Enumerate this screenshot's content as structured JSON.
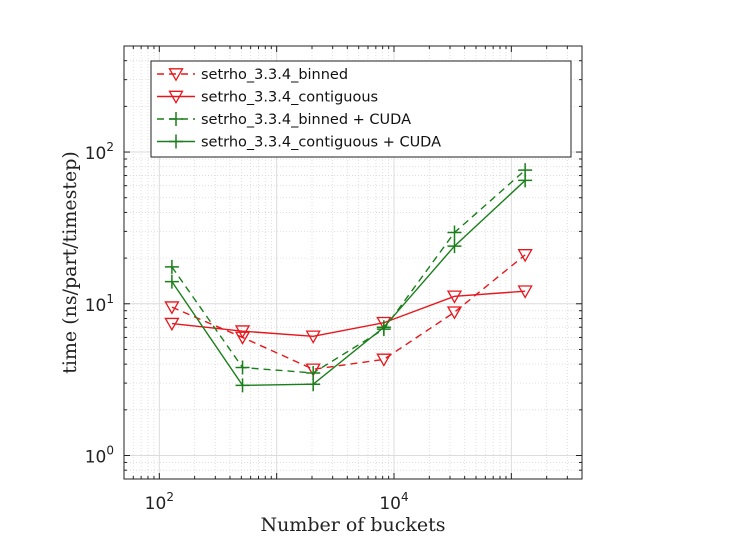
{
  "chart_data": {
    "type": "line",
    "title": "",
    "xlabel": "Number of buckets",
    "ylabel": "time (ns/part/timestep)",
    "xscale": "log",
    "yscale": "log",
    "xlim": [
      50,
      400000
    ],
    "ylim": [
      0.7,
      500
    ],
    "grid": true,
    "legend_position": "top-left",
    "x_ticks": [
      {
        "base": "10",
        "exp": "2",
        "value": 100
      },
      {
        "base": "10",
        "exp": "4",
        "value": 10000
      }
    ],
    "y_ticks": [
      {
        "base": "10",
        "exp": "0",
        "value": 1
      },
      {
        "base": "10",
        "exp": "1",
        "value": 10
      },
      {
        "base": "10",
        "exp": "2",
        "value": 100
      }
    ],
    "x": [
      128,
      512,
      2048,
      8192,
      32768,
      131072
    ],
    "series": [
      {
        "name": "setrho_3.3.4_binned",
        "color": "#e8161b",
        "dash": "dashed",
        "marker": "triangle-down",
        "values": [
          9.5,
          6.0,
          3.7,
          4.3,
          8.8,
          21.0
        ]
      },
      {
        "name": "setrho_3.3.4_contiguous",
        "color": "#e8161b",
        "dash": "solid",
        "marker": "triangle-down",
        "values": [
          7.4,
          6.6,
          6.1,
          7.5,
          11.2,
          12.1
        ]
      },
      {
        "name": "setrho_3.3.4_binned + CUDA",
        "color": "#1a7f1a",
        "dash": "dashed",
        "marker": "plus",
        "values": [
          17.5,
          3.8,
          3.5,
          6.8,
          29.5,
          76.0
        ]
      },
      {
        "name": "setrho_3.3.4_contiguous + CUDA",
        "color": "#1a7f1a",
        "dash": "solid",
        "marker": "plus",
        "values": [
          14.0,
          2.9,
          2.95,
          7.0,
          24.0,
          65.0
        ]
      }
    ]
  }
}
